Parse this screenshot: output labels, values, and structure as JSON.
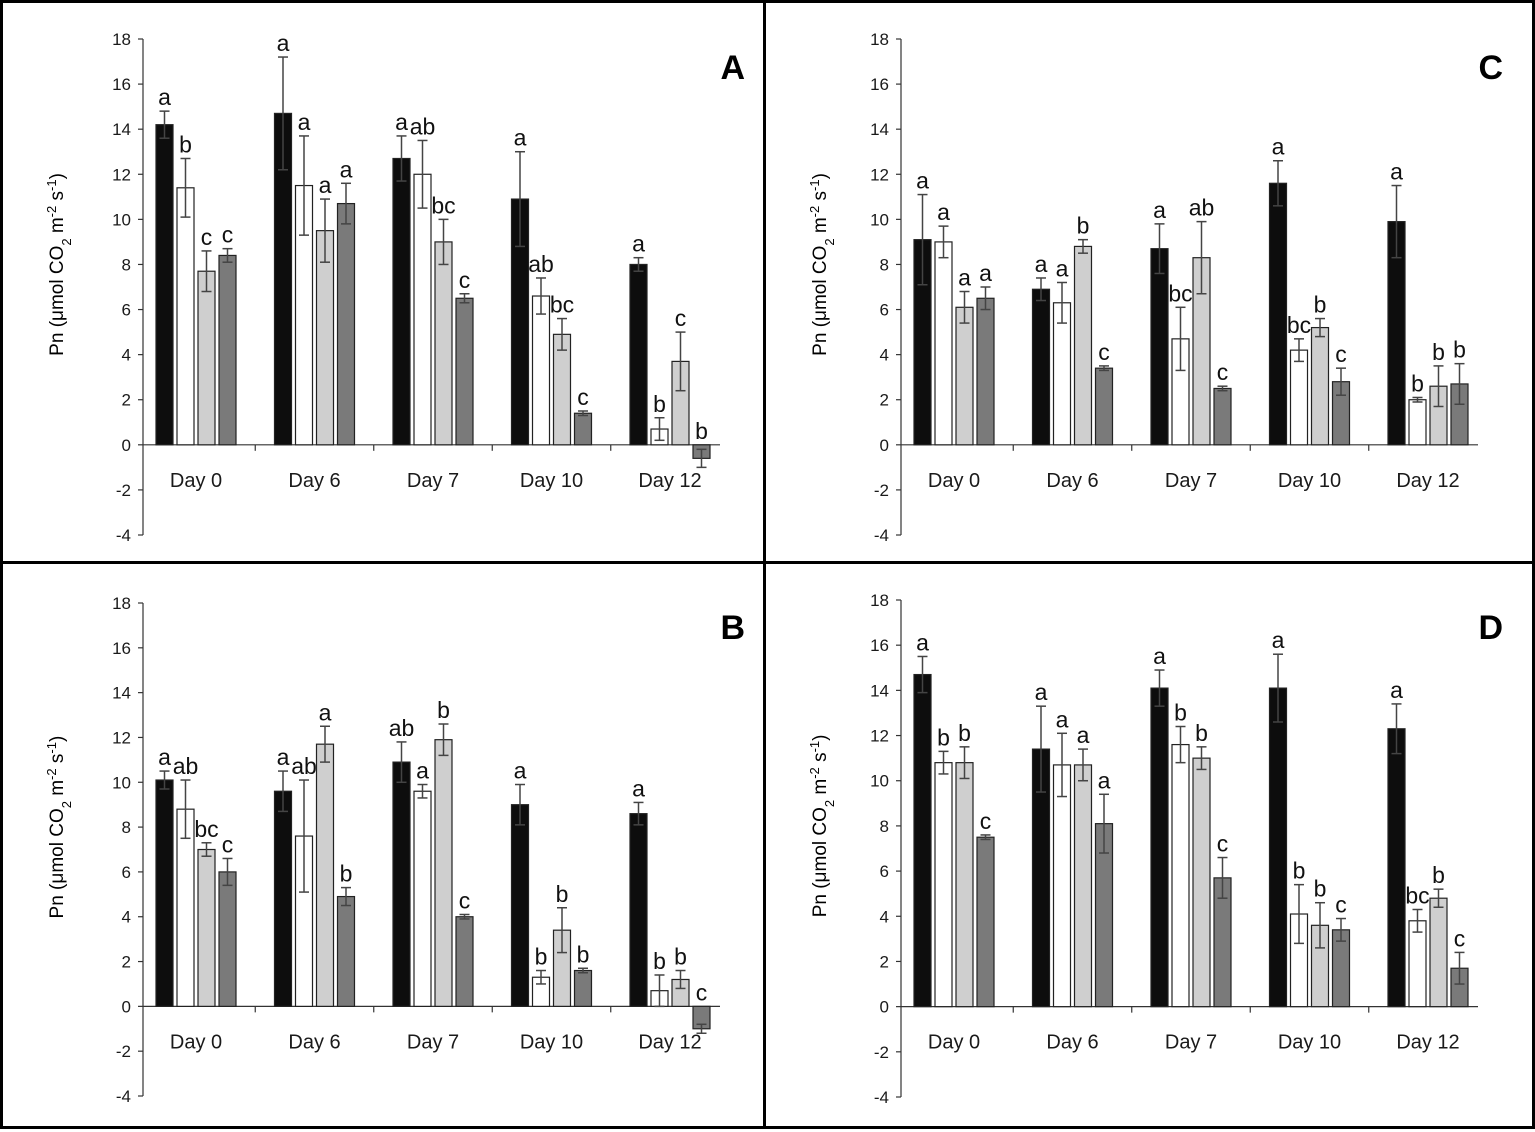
{
  "figure": {
    "colors": {
      "black": "#0d0d0d",
      "white": "#ffffff",
      "light_gray": "#cfcfcf",
      "dark_gray": "#7a7a7a",
      "axis": "#333333"
    },
    "ylabel": {
      "prefix": "Pn (μmol CO",
      "sub1": "2",
      "mid": " m",
      "sup1": "-2",
      "mid2": " s",
      "sup2": "-1",
      "suffix": ")"
    }
  },
  "chart_data": [
    {
      "type": "bar",
      "panel": "A",
      "categories": [
        "Day 0",
        "Day 6",
        "Day 7",
        "Day 10",
        "Day 12"
      ],
      "yticks": [
        18,
        16,
        14,
        12,
        10,
        8,
        6,
        4,
        2,
        0,
        -2,
        -4
      ],
      "ylim": [
        -4,
        18
      ],
      "series": [
        {
          "name": "black",
          "values": [
            14.2,
            14.7,
            12.7,
            10.9,
            8.0
          ],
          "errors": [
            0.6,
            2.5,
            1.0,
            2.1,
            0.3
          ],
          "letters": [
            "a",
            "a",
            "a",
            "a",
            "a"
          ]
        },
        {
          "name": "white",
          "values": [
            11.4,
            11.5,
            12.0,
            6.6,
            0.7
          ],
          "errors": [
            1.3,
            2.2,
            1.5,
            0.8,
            0.5
          ],
          "letters": [
            "b",
            "a",
            "ab",
            "ab",
            "b"
          ]
        },
        {
          "name": "light gray",
          "values": [
            7.7,
            9.5,
            9.0,
            4.9,
            3.7
          ],
          "errors": [
            0.9,
            1.4,
            1.0,
            0.7,
            1.3
          ],
          "letters": [
            "c",
            "a",
            "bc",
            "bc",
            "c"
          ]
        },
        {
          "name": "dark gray",
          "values": [
            8.4,
            10.7,
            6.5,
            1.4,
            -0.6
          ],
          "errors": [
            0.3,
            0.9,
            0.2,
            0.1,
            0.4
          ],
          "letters": [
            "c",
            "a",
            "c",
            "c",
            "b"
          ]
        }
      ]
    },
    {
      "type": "bar",
      "panel": "C",
      "categories": [
        "Day 0",
        "Day 6",
        "Day 7",
        "Day 10",
        "Day 12"
      ],
      "yticks": [
        18,
        16,
        14,
        12,
        10,
        8,
        6,
        4,
        2,
        0,
        -2,
        -4
      ],
      "ylim": [
        -4,
        18
      ],
      "series": [
        {
          "name": "black",
          "values": [
            9.1,
            6.9,
            8.7,
            11.6,
            9.9
          ],
          "errors": [
            2.0,
            0.5,
            1.1,
            1.0,
            1.6
          ],
          "letters": [
            "a",
            "a",
            "a",
            "a",
            "a"
          ]
        },
        {
          "name": "white",
          "values": [
            9.0,
            6.3,
            4.7,
            4.2,
            2.0
          ],
          "errors": [
            0.7,
            0.9,
            1.4,
            0.5,
            0.1
          ],
          "letters": [
            "a",
            "a",
            "bc",
            "bc",
            "b"
          ]
        },
        {
          "name": "light gray",
          "values": [
            6.1,
            8.8,
            8.3,
            5.2,
            2.6
          ],
          "errors": [
            0.7,
            0.3,
            1.6,
            0.4,
            0.9
          ],
          "letters": [
            "a",
            "b",
            "ab",
            "b",
            "b"
          ]
        },
        {
          "name": "dark gray",
          "values": [
            6.5,
            3.4,
            2.5,
            2.8,
            2.7
          ],
          "errors": [
            0.5,
            0.1,
            0.1,
            0.6,
            0.9
          ],
          "letters": [
            "a",
            "c",
            "c",
            "c",
            "b"
          ]
        }
      ]
    },
    {
      "type": "bar",
      "panel": "B",
      "categories": [
        "Day 0",
        "Day 6",
        "Day 7",
        "Day 10",
        "Day 12"
      ],
      "yticks": [
        18,
        16,
        14,
        12,
        10,
        8,
        6,
        4,
        2,
        0,
        -2,
        -4
      ],
      "ylim": [
        -4,
        18
      ],
      "series": [
        {
          "name": "black",
          "values": [
            10.1,
            9.6,
            10.9,
            9.0,
            8.6
          ],
          "errors": [
            0.4,
            0.9,
            0.9,
            0.9,
            0.5
          ],
          "letters": [
            "a",
            "a",
            "ab",
            "a",
            "a"
          ]
        },
        {
          "name": "white",
          "values": [
            8.8,
            7.6,
            9.6,
            1.3,
            0.7
          ],
          "errors": [
            1.3,
            2.5,
            0.3,
            0.3,
            0.7
          ],
          "letters": [
            "ab",
            "ab",
            "a",
            "b",
            "b"
          ]
        },
        {
          "name": "light gray",
          "values": [
            7.0,
            11.7,
            11.9,
            3.4,
            1.2
          ],
          "errors": [
            0.3,
            0.8,
            0.7,
            1.0,
            0.4
          ],
          "letters": [
            "bc",
            "a",
            "b",
            "b",
            "b"
          ]
        },
        {
          "name": "dark gray",
          "values": [
            6.0,
            4.9,
            4.0,
            1.6,
            -1.0
          ],
          "errors": [
            0.6,
            0.4,
            0.1,
            0.1,
            0.2
          ],
          "letters": [
            "c",
            "b",
            "c",
            "b",
            "c"
          ]
        }
      ]
    },
    {
      "type": "bar",
      "panel": "D",
      "categories": [
        "Day 0",
        "Day 6",
        "Day 7",
        "Day 10",
        "Day 12"
      ],
      "yticks": [
        18,
        16,
        14,
        12,
        10,
        8,
        6,
        4,
        2,
        0,
        -2,
        -4
      ],
      "ylim": [
        -4,
        18
      ],
      "series": [
        {
          "name": "black",
          "values": [
            14.7,
            11.4,
            14.1,
            14.1,
            12.3
          ],
          "errors": [
            0.8,
            1.9,
            0.8,
            1.5,
            1.1
          ],
          "letters": [
            "a",
            "a",
            "a",
            "a",
            "a"
          ]
        },
        {
          "name": "white",
          "values": [
            10.8,
            10.7,
            11.6,
            4.1,
            3.8
          ],
          "errors": [
            0.5,
            1.4,
            0.8,
            1.3,
            0.5
          ],
          "letters": [
            "b",
            "a",
            "b",
            "b",
            "bc"
          ]
        },
        {
          "name": "light gray",
          "values": [
            10.8,
            10.7,
            11.0,
            3.6,
            4.8
          ],
          "errors": [
            0.7,
            0.7,
            0.5,
            1.0,
            0.4
          ],
          "letters": [
            "b",
            "a",
            "b",
            "b",
            "b"
          ]
        },
        {
          "name": "dark gray",
          "values": [
            7.5,
            8.1,
            5.7,
            3.4,
            1.7
          ],
          "errors": [
            0.1,
            1.3,
            0.9,
            0.5,
            0.7
          ],
          "letters": [
            "c",
            "a",
            "c",
            "c",
            "c"
          ]
        }
      ]
    }
  ]
}
